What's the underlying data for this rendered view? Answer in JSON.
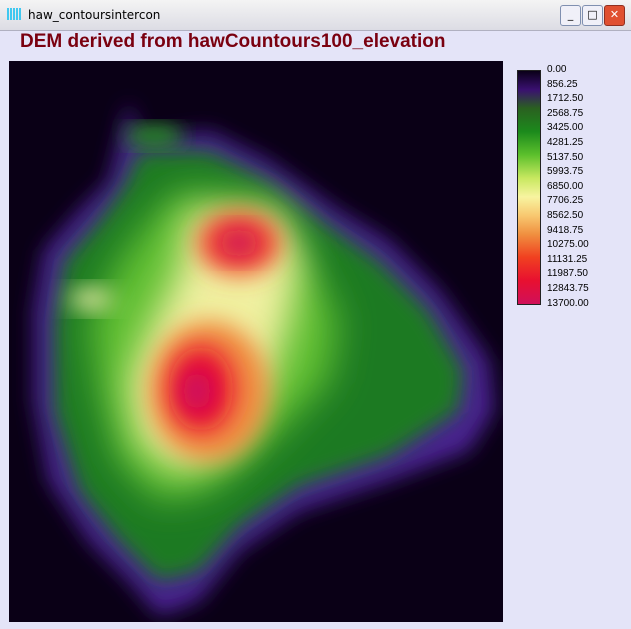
{
  "window": {
    "title": "haw_contoursintercon"
  },
  "map": {
    "title": "DEM derived from hawCountours100_elevation"
  },
  "legend": {
    "labels": [
      "0.00",
      "856.25",
      "1712.50",
      "2568.75",
      "3425.00",
      "4281.25",
      "5137.50",
      "5993.75",
      "6850.00",
      "7706.25",
      "8562.50",
      "9418.75",
      "10275.00",
      "11131.25",
      "11987.50",
      "12843.75",
      "13700.00"
    ]
  }
}
